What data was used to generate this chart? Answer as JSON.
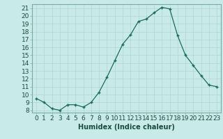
{
  "x": [
    0,
    1,
    2,
    3,
    4,
    5,
    6,
    7,
    8,
    9,
    10,
    11,
    12,
    13,
    14,
    15,
    16,
    17,
    18,
    19,
    20,
    21,
    22,
    23
  ],
  "y": [
    9.5,
    9.0,
    8.2,
    8.0,
    8.7,
    8.7,
    8.4,
    9.0,
    10.3,
    12.2,
    14.3,
    16.4,
    17.6,
    19.3,
    19.6,
    20.4,
    21.1,
    20.9,
    17.5,
    15.0,
    13.7,
    12.4,
    11.2,
    11.0
  ],
  "xlabel": "Humidex (Indice chaleur)",
  "xlim_min": -0.5,
  "xlim_max": 23.5,
  "ylim_min": 7.7,
  "ylim_max": 21.5,
  "yticks": [
    8,
    9,
    10,
    11,
    12,
    13,
    14,
    15,
    16,
    17,
    18,
    19,
    20,
    21
  ],
  "xticks": [
    0,
    1,
    2,
    3,
    4,
    5,
    6,
    7,
    8,
    9,
    10,
    11,
    12,
    13,
    14,
    15,
    16,
    17,
    18,
    19,
    20,
    21,
    22,
    23
  ],
  "line_color": "#1a6b5a",
  "bg_color": "#c8eae8",
  "grid_color": "#afd6d3",
  "label_fontsize": 7,
  "tick_fontsize": 6.5
}
